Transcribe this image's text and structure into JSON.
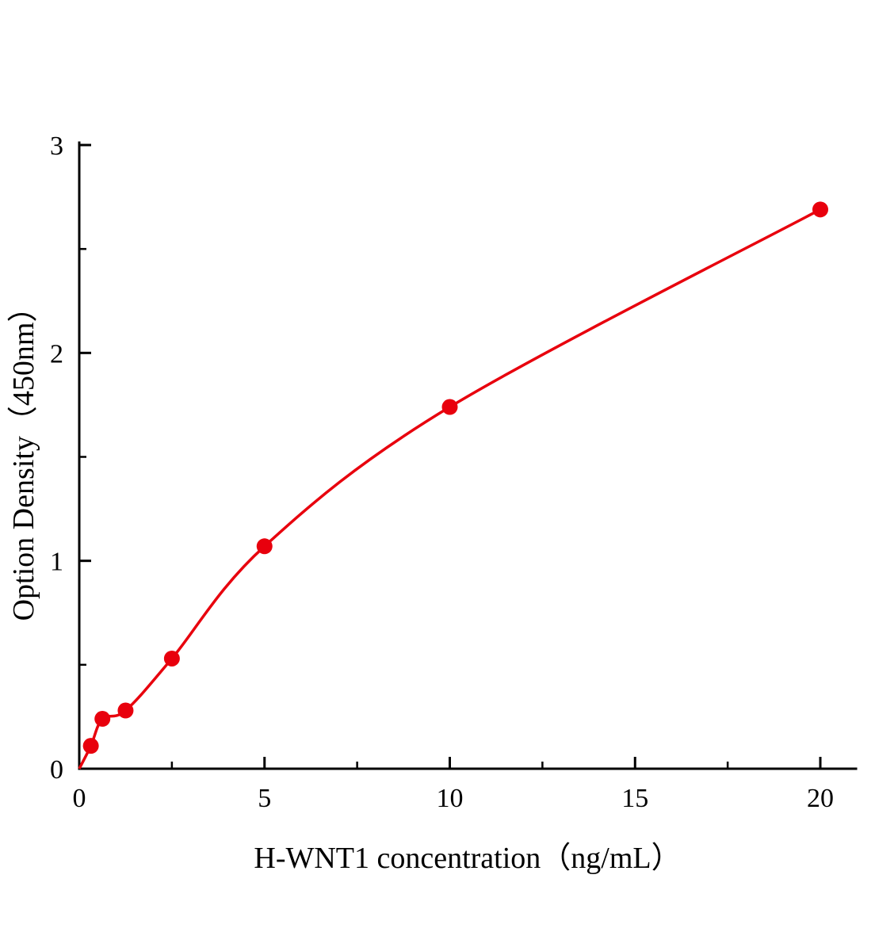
{
  "chart_data": {
    "type": "line",
    "title": "",
    "xlabel": "H-WNT1 concentration（ng/mL）",
    "ylabel": "Option Density（450nm）",
    "x": [
      0.313,
      0.625,
      1.25,
      2.5,
      5,
      10,
      20
    ],
    "y": [
      0.11,
      0.24,
      0.28,
      0.53,
      1.07,
      1.74,
      2.69
    ],
    "curve_origin": {
      "x": 0,
      "y": 0
    },
    "xlim": [
      0,
      20.9
    ],
    "ylim": [
      0,
      3.01
    ],
    "x_major_ticks": [
      0,
      5,
      10,
      15,
      20
    ],
    "x_major_tick_labels": [
      "0",
      "5",
      "10",
      "15",
      "20"
    ],
    "x_minor_ticks": [
      2.5,
      7.5,
      12.5,
      17.5
    ],
    "y_major_ticks": [
      0,
      1,
      2,
      3
    ],
    "y_major_tick_labels": [
      "0",
      "1",
      "2",
      "3"
    ],
    "y_minor_ticks": [
      0.5,
      1.5,
      2.5
    ],
    "legend": [],
    "grid": "off",
    "line_color": "#e8000d",
    "marker_color": "#e8000d",
    "axis_color": "#000000"
  }
}
